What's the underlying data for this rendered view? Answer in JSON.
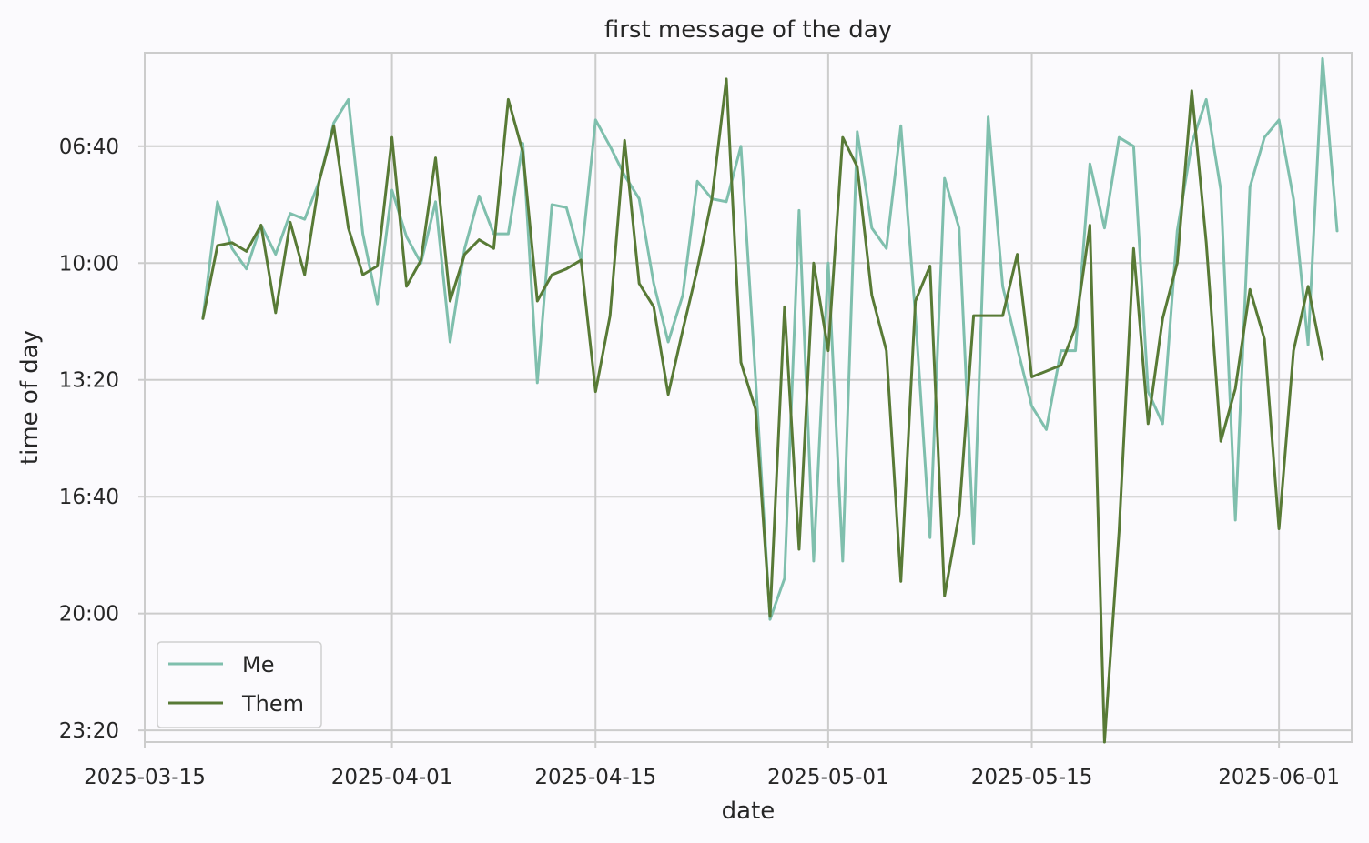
{
  "chart_data": {
    "type": "line",
    "title": "first message of the day",
    "xlabel": "date",
    "ylabel": "time of day",
    "x_ticks": [
      "2025-03-15",
      "2025-04-01",
      "2025-04-15",
      "2025-05-01",
      "2025-05-15",
      "2025-06-01"
    ],
    "y_ticks": [
      "06:40",
      "10:00",
      "13:20",
      "16:40",
      "20:00",
      "23:20"
    ],
    "xlim": [
      "2025-03-15",
      "2025-06-06"
    ],
    "y_axis": "time of day, inverted (earlier at top)",
    "ylim": [
      "04:00",
      "23:40"
    ],
    "grid": true,
    "legend": "bottom-left",
    "series": [
      {
        "name": "Me",
        "color": "#7fbfad",
        "points": [
          [
            "2025-03-19",
            "11:35"
          ],
          [
            "2025-03-20",
            "08:15"
          ],
          [
            "2025-03-21",
            "09:35"
          ],
          [
            "2025-03-22",
            "10:10"
          ],
          [
            "2025-03-23",
            "08:55"
          ],
          [
            "2025-03-24",
            "09:45"
          ],
          [
            "2025-03-25",
            "08:35"
          ],
          [
            "2025-03-26",
            "08:45"
          ],
          [
            "2025-03-27",
            "07:40"
          ],
          [
            "2025-03-28",
            "06:00"
          ],
          [
            "2025-03-29",
            "05:20"
          ],
          [
            "2025-03-30",
            "09:10"
          ],
          [
            "2025-03-31",
            "11:10"
          ],
          [
            "2025-04-01",
            "07:55"
          ],
          [
            "2025-04-02",
            "09:15"
          ],
          [
            "2025-04-03",
            "10:00"
          ],
          [
            "2025-04-04",
            "08:15"
          ],
          [
            "2025-04-05",
            "12:15"
          ],
          [
            "2025-04-06",
            "09:35"
          ],
          [
            "2025-04-07",
            "08:05"
          ],
          [
            "2025-04-08",
            "09:10"
          ],
          [
            "2025-04-09",
            "09:10"
          ],
          [
            "2025-04-10",
            "06:35"
          ],
          [
            "2025-04-11",
            "13:25"
          ],
          [
            "2025-04-12",
            "08:20"
          ],
          [
            "2025-04-13",
            "08:25"
          ],
          [
            "2025-04-14",
            "09:55"
          ],
          [
            "2025-04-15",
            "05:55"
          ],
          [
            "2025-04-16",
            "06:40"
          ],
          [
            "2025-04-17",
            "07:30"
          ],
          [
            "2025-04-18",
            "08:10"
          ],
          [
            "2025-04-19",
            "10:35"
          ],
          [
            "2025-04-20",
            "12:15"
          ],
          [
            "2025-04-21",
            "10:55"
          ],
          [
            "2025-04-22",
            "07:40"
          ],
          [
            "2025-04-23",
            "08:10"
          ],
          [
            "2025-04-24",
            "08:15"
          ],
          [
            "2025-04-25",
            "06:40"
          ],
          [
            "2025-04-26",
            "13:15"
          ],
          [
            "2025-04-27",
            "20:10"
          ],
          [
            "2025-04-28",
            "19:00"
          ],
          [
            "2025-04-29",
            "08:30"
          ],
          [
            "2025-04-30",
            "18:30"
          ],
          [
            "2025-05-01",
            "10:00"
          ],
          [
            "2025-05-02",
            "18:30"
          ],
          [
            "2025-05-03",
            "06:15"
          ],
          [
            "2025-05-04",
            "09:00"
          ],
          [
            "2025-05-05",
            "09:35"
          ],
          [
            "2025-05-06",
            "06:05"
          ],
          [
            "2025-05-07",
            "11:30"
          ],
          [
            "2025-05-08",
            "17:50"
          ],
          [
            "2025-05-09",
            "07:35"
          ],
          [
            "2025-05-10",
            "09:00"
          ],
          [
            "2025-05-11",
            "18:00"
          ],
          [
            "2025-05-12",
            "05:50"
          ],
          [
            "2025-05-13",
            "10:40"
          ],
          [
            "2025-05-14",
            "12:25"
          ],
          [
            "2025-05-15",
            "14:05"
          ],
          [
            "2025-05-16",
            "14:45"
          ],
          [
            "2025-05-17",
            "12:30"
          ],
          [
            "2025-05-18",
            "12:30"
          ],
          [
            "2025-05-19",
            "07:10"
          ],
          [
            "2025-05-20",
            "09:00"
          ],
          [
            "2025-05-21",
            "06:25"
          ],
          [
            "2025-05-22",
            "06:40"
          ],
          [
            "2025-05-23",
            "13:40"
          ],
          [
            "2025-05-24",
            "14:35"
          ],
          [
            "2025-05-25",
            "09:05"
          ],
          [
            "2025-05-26",
            "06:35"
          ],
          [
            "2025-05-27",
            "05:20"
          ],
          [
            "2025-05-28",
            "07:55"
          ],
          [
            "2025-05-29",
            "17:20"
          ],
          [
            "2025-05-30",
            "07:50"
          ],
          [
            "2025-05-31",
            "06:25"
          ],
          [
            "2025-06-01",
            "05:55"
          ],
          [
            "2025-06-02",
            "08:10"
          ],
          [
            "2025-06-03",
            "12:20"
          ],
          [
            "2025-06-04",
            "04:10"
          ],
          [
            "2025-06-05",
            "09:05"
          ]
        ]
      },
      {
        "name": "Them",
        "color": "#587a36",
        "points": [
          [
            "2025-03-19",
            "11:35"
          ],
          [
            "2025-03-20",
            "09:30"
          ],
          [
            "2025-03-21",
            "09:25"
          ],
          [
            "2025-03-22",
            "09:40"
          ],
          [
            "2025-03-23",
            "08:55"
          ],
          [
            "2025-03-24",
            "11:25"
          ],
          [
            "2025-03-25",
            "08:50"
          ],
          [
            "2025-03-26",
            "10:20"
          ],
          [
            "2025-03-27",
            "07:40"
          ],
          [
            "2025-03-28",
            "06:05"
          ],
          [
            "2025-03-29",
            "09:00"
          ],
          [
            "2025-03-30",
            "10:20"
          ],
          [
            "2025-03-31",
            "10:05"
          ],
          [
            "2025-04-01",
            "06:25"
          ],
          [
            "2025-04-02",
            "10:40"
          ],
          [
            "2025-04-03",
            "09:55"
          ],
          [
            "2025-04-04",
            "07:00"
          ],
          [
            "2025-04-05",
            "11:05"
          ],
          [
            "2025-04-06",
            "09:45"
          ],
          [
            "2025-04-07",
            "09:20"
          ],
          [
            "2025-04-08",
            "09:35"
          ],
          [
            "2025-04-09",
            "05:20"
          ],
          [
            "2025-04-10",
            "06:50"
          ],
          [
            "2025-04-11",
            "11:05"
          ],
          [
            "2025-04-12",
            "10:20"
          ],
          [
            "2025-04-13",
            "10:10"
          ],
          [
            "2025-04-14",
            "09:55"
          ],
          [
            "2025-04-15",
            "13:40"
          ],
          [
            "2025-04-16",
            "11:30"
          ],
          [
            "2025-04-17",
            "06:30"
          ],
          [
            "2025-04-18",
            "10:35"
          ],
          [
            "2025-04-19",
            "11:15"
          ],
          [
            "2025-04-20",
            "13:45"
          ],
          [
            "2025-04-21",
            "11:55"
          ],
          [
            "2025-04-22",
            "10:10"
          ],
          [
            "2025-04-23",
            "08:10"
          ],
          [
            "2025-04-24",
            "04:45"
          ],
          [
            "2025-04-25",
            "12:50"
          ],
          [
            "2025-04-26",
            "14:10"
          ],
          [
            "2025-04-27",
            "20:05"
          ],
          [
            "2025-04-28",
            "11:15"
          ],
          [
            "2025-04-29",
            "18:10"
          ],
          [
            "2025-04-30",
            "10:00"
          ],
          [
            "2025-05-01",
            "12:30"
          ],
          [
            "2025-05-02",
            "06:25"
          ],
          [
            "2025-05-03",
            "07:15"
          ],
          [
            "2025-05-04",
            "10:55"
          ],
          [
            "2025-05-05",
            "12:30"
          ],
          [
            "2025-05-06",
            "19:05"
          ],
          [
            "2025-05-07",
            "11:05"
          ],
          [
            "2025-05-08",
            "10:05"
          ],
          [
            "2025-05-09",
            "19:30"
          ],
          [
            "2025-05-10",
            "17:10"
          ],
          [
            "2025-05-11",
            "11:30"
          ],
          [
            "2025-05-12",
            "11:30"
          ],
          [
            "2025-05-13",
            "11:30"
          ],
          [
            "2025-05-14",
            "09:45"
          ],
          [
            "2025-05-15",
            "13:15"
          ],
          [
            "2025-05-16",
            "13:05"
          ],
          [
            "2025-05-17",
            "12:55"
          ],
          [
            "2025-05-18",
            "11:50"
          ],
          [
            "2025-05-19",
            "08:55"
          ],
          [
            "2025-05-20",
            "23:40"
          ],
          [
            "2025-05-21",
            "17:40"
          ],
          [
            "2025-05-22",
            "09:35"
          ],
          [
            "2025-05-23",
            "14:35"
          ],
          [
            "2025-05-24",
            "11:35"
          ],
          [
            "2025-05-25",
            "10:00"
          ],
          [
            "2025-05-26",
            "05:05"
          ],
          [
            "2025-05-27",
            "09:25"
          ],
          [
            "2025-05-28",
            "15:05"
          ],
          [
            "2025-05-29",
            "13:35"
          ],
          [
            "2025-05-30",
            "10:45"
          ],
          [
            "2025-05-31",
            "12:10"
          ],
          [
            "2025-06-01",
            "17:35"
          ],
          [
            "2025-06-02",
            "12:30"
          ],
          [
            "2025-06-03",
            "10:40"
          ],
          [
            "2025-06-04",
            "12:45"
          ]
        ]
      }
    ]
  }
}
